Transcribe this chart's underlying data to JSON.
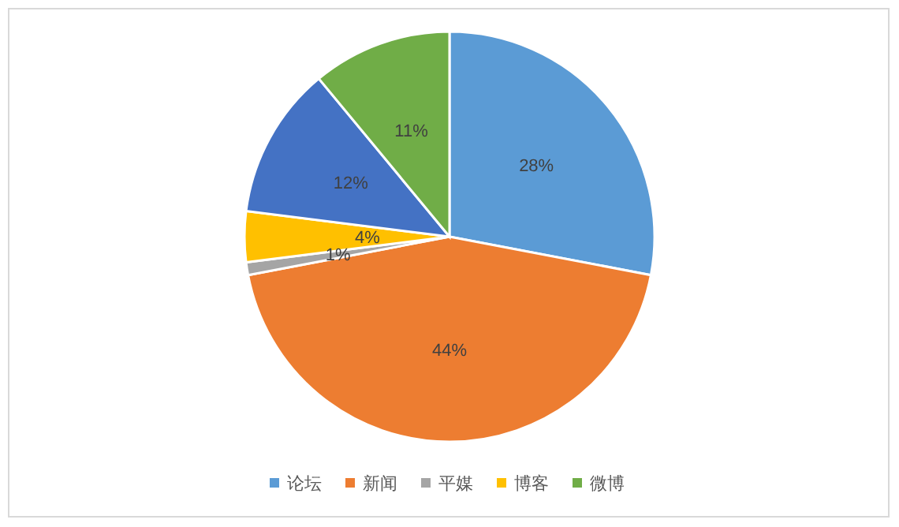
{
  "chart_data": {
    "type": "pie",
    "categories": [
      "论坛",
      "新闻",
      "平媒",
      "博客",
      null,
      "微博"
    ],
    "values": [
      28,
      44,
      1,
      4,
      12,
      11
    ],
    "colors": [
      "#5b9bd5",
      "#ed7d31",
      "#a5a5a5",
      "#ffc000",
      "#4472c4",
      "#70ad47"
    ],
    "value_labels": [
      "28%",
      "44%",
      "1%",
      "4%",
      "12%",
      "11%"
    ],
    "legend": "bottom"
  }
}
